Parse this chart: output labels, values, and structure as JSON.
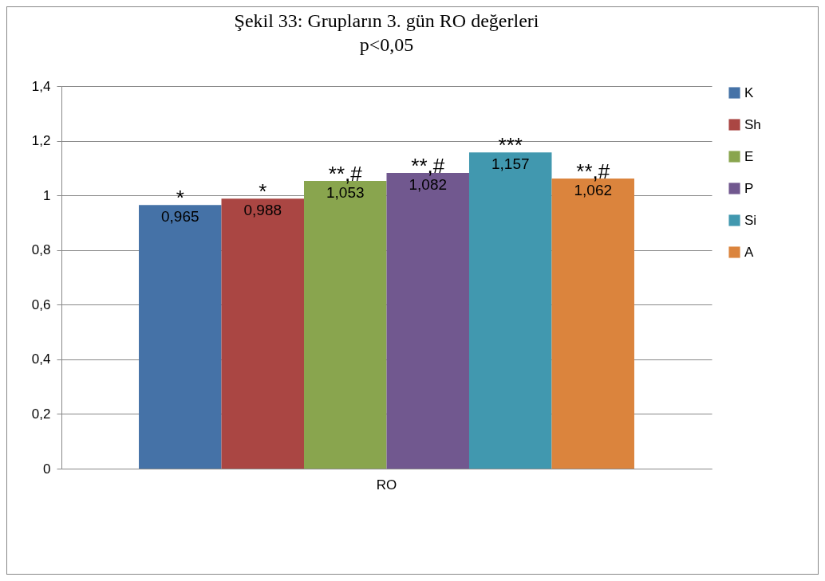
{
  "chart_data": {
    "type": "bar",
    "title": "Şekil 33: Grupların 3. gün RO değerleri",
    "subtitle": "p<0,05",
    "categories": [
      "RO"
    ],
    "series": [
      {
        "name": "K",
        "color": "#4572a7",
        "values": [
          0.965
        ],
        "value_labels": [
          "0,965"
        ]
      },
      {
        "name": "Sh",
        "color": "#aa4643",
        "values": [
          0.988
        ],
        "value_labels": [
          "0,988"
        ]
      },
      {
        "name": "E",
        "color": "#89a54e",
        "values": [
          1.053
        ],
        "value_labels": [
          "1,053"
        ]
      },
      {
        "name": "P",
        "color": "#71588f",
        "values": [
          1.082
        ],
        "value_labels": [
          "1,082"
        ]
      },
      {
        "name": "Si",
        "color": "#4198af",
        "values": [
          1.157
        ],
        "value_labels": [
          "1,157"
        ]
      },
      {
        "name": "A",
        "color": "#db843d",
        "values": [
          1.062
        ],
        "value_labels": [
          "1,062"
        ]
      }
    ],
    "annotations": [
      "*",
      "*",
      "**,#",
      "**,#",
      "***",
      "**,#"
    ],
    "ylim": [
      0,
      1.4
    ],
    "yticks": [
      0,
      {
        "value": 0.2,
        "label": "0,2"
      },
      {
        "value": 0.4,
        "label": "0,4"
      },
      {
        "value": 0.6,
        "label": "0,6"
      },
      {
        "value": 0.8,
        "label": "0,8"
      },
      1,
      {
        "value": 1.2,
        "label": "1,2"
      },
      {
        "value": 1.4,
        "label": "1,4"
      }
    ],
    "grid": "y",
    "legend": "right"
  }
}
